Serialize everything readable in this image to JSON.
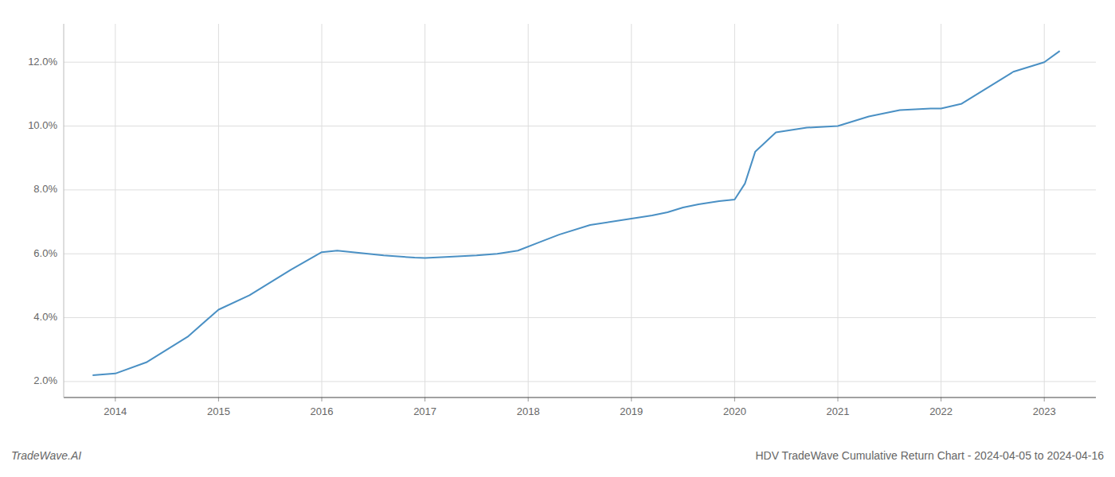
{
  "chart_data": {
    "type": "line",
    "x": [
      2013.78,
      2014.0,
      2014.3,
      2014.7,
      2015.0,
      2015.3,
      2015.7,
      2016.0,
      2016.15,
      2016.3,
      2016.6,
      2016.9,
      2017.0,
      2017.2,
      2017.5,
      2017.7,
      2017.9,
      2018.1,
      2018.3,
      2018.6,
      2018.9,
      2019.0,
      2019.2,
      2019.35,
      2019.5,
      2019.65,
      2019.75,
      2019.85,
      2020.0,
      2020.1,
      2020.2,
      2020.4,
      2020.7,
      2021.0,
      2021.3,
      2021.6,
      2021.9,
      2022.0,
      2022.2,
      2022.5,
      2022.7,
      2022.9,
      2023.0,
      2023.15
    ],
    "values": [
      2.2,
      2.25,
      2.6,
      3.4,
      4.25,
      4.7,
      5.5,
      6.05,
      6.1,
      6.05,
      5.95,
      5.88,
      5.87,
      5.9,
      5.95,
      6.0,
      6.1,
      6.35,
      6.6,
      6.9,
      7.05,
      7.1,
      7.2,
      7.3,
      7.45,
      7.55,
      7.6,
      7.65,
      7.7,
      8.2,
      9.2,
      9.8,
      9.95,
      10.0,
      10.3,
      10.5,
      10.55,
      10.55,
      10.7,
      11.3,
      11.7,
      11.9,
      12.0,
      12.35
    ],
    "color": "#4a90c4",
    "xlim": [
      2013.5,
      2023.5
    ],
    "ylim": [
      1.5,
      13.2
    ],
    "xticks": [
      2014,
      2015,
      2016,
      2017,
      2018,
      2019,
      2020,
      2021,
      2022,
      2023
    ],
    "yticks": [
      {
        "value": 2.0,
        "label": "2.0%"
      },
      {
        "value": 4.0,
        "label": "4.0%"
      },
      {
        "value": 6.0,
        "label": "6.0%"
      },
      {
        "value": 8.0,
        "label": "8.0%"
      },
      {
        "value": 10.0,
        "label": "10.0%"
      },
      {
        "value": 12.0,
        "label": "12.0%"
      }
    ],
    "grid": true,
    "annotations": [
      "TradeWave.AI",
      "HDV TradeWave Cumulative Return Chart - 2024-04-05 to 2024-04-16"
    ]
  }
}
